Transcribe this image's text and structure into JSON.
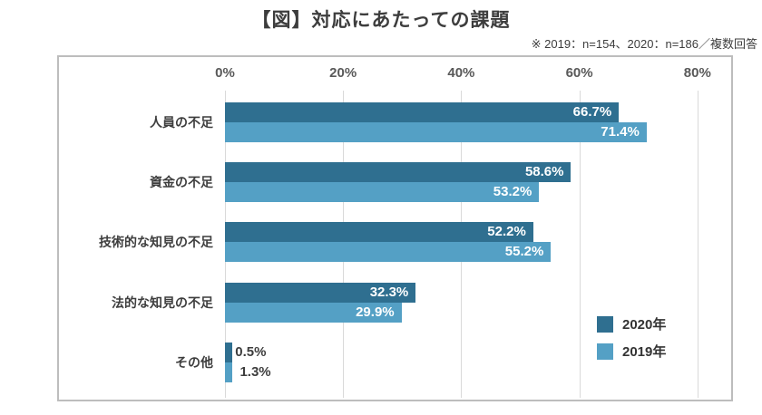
{
  "title": "【図】対応にあたっての課題",
  "note": "※ 2019：n=154、2020：n=186／複数回答",
  "chart_data": {
    "type": "bar",
    "orientation": "horizontal",
    "title": "【図】対応にあたっての課題",
    "categories": [
      "人員の不足",
      "資金の不足",
      "技術的な知見の不足",
      "法的な知見の不足",
      "その他"
    ],
    "series": [
      {
        "name": "2020年",
        "color": "#2f6f90",
        "values": [
          66.7,
          58.6,
          52.2,
          32.3,
          0.5
        ]
      },
      {
        "name": "2019年",
        "color": "#54a0c5",
        "values": [
          71.4,
          53.2,
          55.2,
          29.9,
          1.3
        ]
      }
    ],
    "value_suffix": "%",
    "x_ticks": [
      {
        "value": 0,
        "label": "0%"
      },
      {
        "value": 20,
        "label": "20%"
      },
      {
        "value": 40,
        "label": "40%"
      },
      {
        "value": 60,
        "label": "60%"
      },
      {
        "value": 80,
        "label": "80%"
      }
    ],
    "xlim": [
      0,
      86
    ],
    "grid": true,
    "legend_position": "inside-right",
    "value_labels": "at-bar-end"
  },
  "colors": {
    "bar_2020": "#2f6f90",
    "bar_2019": "#54a0c5",
    "grid": "#d9d9d9",
    "box_border": "#bdbdbd",
    "text": "#3d3d3d",
    "tick_text": "#595959",
    "value_label_on_bar": "#ffffff"
  }
}
